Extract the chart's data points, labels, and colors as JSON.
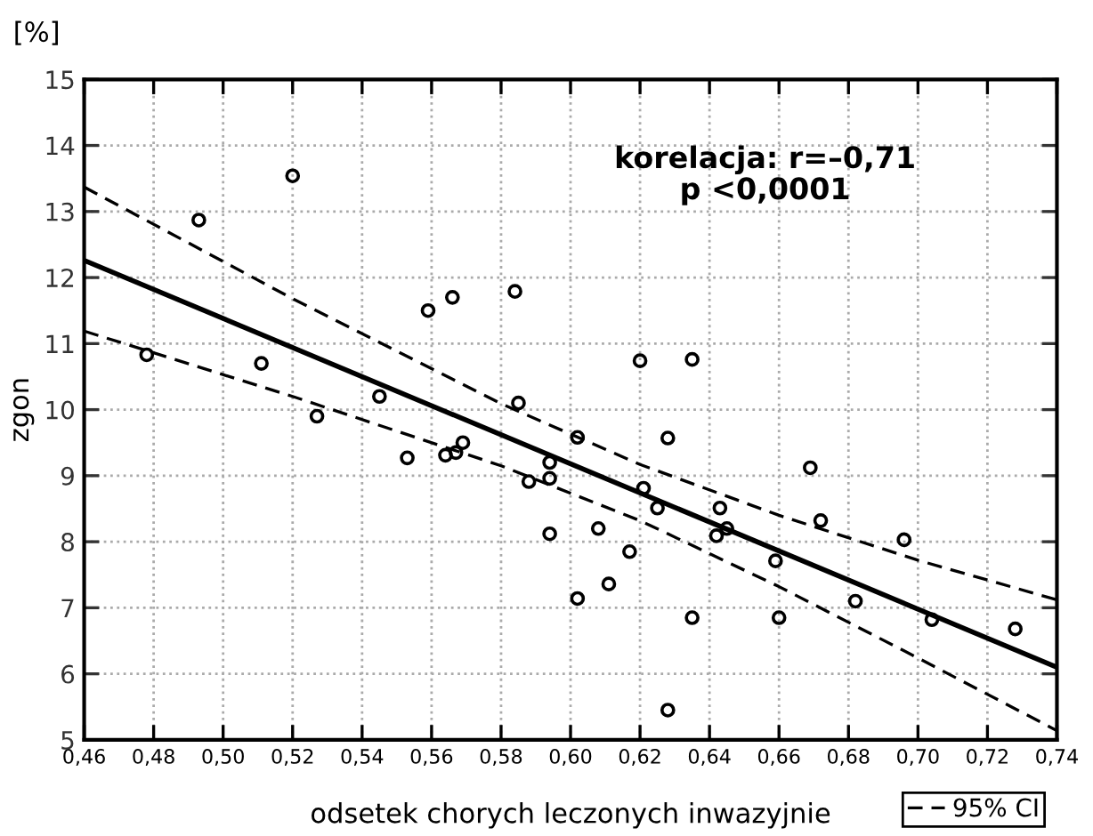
{
  "chart_data": {
    "type": "scatter",
    "xlabel": "odsetek chorych leczonych inwazyjnie",
    "ylabel": "zgon",
    "annotations": [
      "[%]",
      "korelacja: r=–0,71\np <0,0001"
    ],
    "xlim": [
      0.46,
      0.74
    ],
    "ylim": [
      5,
      15
    ],
    "xticks": [
      {
        "value": 0.46,
        "label": "0,46"
      },
      {
        "value": 0.48,
        "label": "0,48"
      },
      {
        "value": 0.5,
        "label": "0,50"
      },
      {
        "value": 0.52,
        "label": "0,52"
      },
      {
        "value": 0.54,
        "label": "0,54"
      },
      {
        "value": 0.56,
        "label": "0,56"
      },
      {
        "value": 0.58,
        "label": "0,58"
      },
      {
        "value": 0.6,
        "label": "0,60"
      },
      {
        "value": 0.62,
        "label": "0,62"
      },
      {
        "value": 0.64,
        "label": "0,64"
      },
      {
        "value": 0.66,
        "label": "0,66"
      },
      {
        "value": 0.68,
        "label": "0,68"
      },
      {
        "value": 0.7,
        "label": "0,70"
      },
      {
        "value": 0.72,
        "label": "0,72"
      },
      {
        "value": 0.74,
        "label": "0,74"
      }
    ],
    "yticks": [
      5,
      6,
      7,
      8,
      9,
      10,
      11,
      12,
      13,
      14,
      15
    ],
    "grid": true,
    "legend": "bottom right",
    "series": [
      {
        "color": "#000000",
        "marker": "circle",
        "x": [
          0.478,
          0.493,
          0.52,
          0.511,
          0.527,
          0.545,
          0.559,
          0.566,
          0.584,
          0.585,
          0.569,
          0.62,
          0.635,
          0.628,
          0.602,
          0.553,
          0.564,
          0.567,
          0.588,
          0.594,
          0.594,
          0.594,
          0.621,
          0.625,
          0.608,
          0.617,
          0.611,
          0.602,
          0.635,
          0.628,
          0.643,
          0.645,
          0.642,
          0.659,
          0.66,
          0.669,
          0.672,
          0.682,
          0.696,
          0.704,
          0.728
        ],
        "values": [
          10.83,
          12.87,
          13.54,
          10.7,
          9.9,
          10.2,
          11.5,
          11.7,
          11.79,
          10.1,
          9.5,
          10.74,
          10.76,
          9.57,
          9.58,
          9.27,
          9.31,
          9.35,
          8.91,
          9.2,
          8.96,
          8.12,
          8.81,
          8.51,
          8.2,
          7.85,
          7.36,
          7.14,
          6.85,
          5.45,
          8.51,
          8.2,
          8.09,
          7.71,
          6.85,
          9.12,
          8.32,
          7.1,
          8.03,
          6.82,
          6.68
        ]
      },
      {
        "type": "line",
        "color": "#000000",
        "line_style": "solid",
        "x": [
          0.46,
          0.74
        ],
        "values": [
          12.26,
          6.1
        ]
      },
      {
        "type": "line",
        "name": "95% CI",
        "color": "#000000",
        "line_style": "dashed",
        "x": [
          0.46,
          0.52,
          0.58,
          0.62,
          0.66,
          0.7,
          0.74
        ],
        "values": [
          13.37,
          11.68,
          10.09,
          9.17,
          8.4,
          7.72,
          7.12
        ]
      },
      {
        "type": "line",
        "color": "#000000",
        "line_style": "dashed",
        "x": [
          0.46,
          0.52,
          0.58,
          0.62,
          0.66,
          0.7,
          0.74
        ],
        "values": [
          11.19,
          10.2,
          9.15,
          8.32,
          7.32,
          6.24,
          5.14
        ]
      }
    ]
  }
}
